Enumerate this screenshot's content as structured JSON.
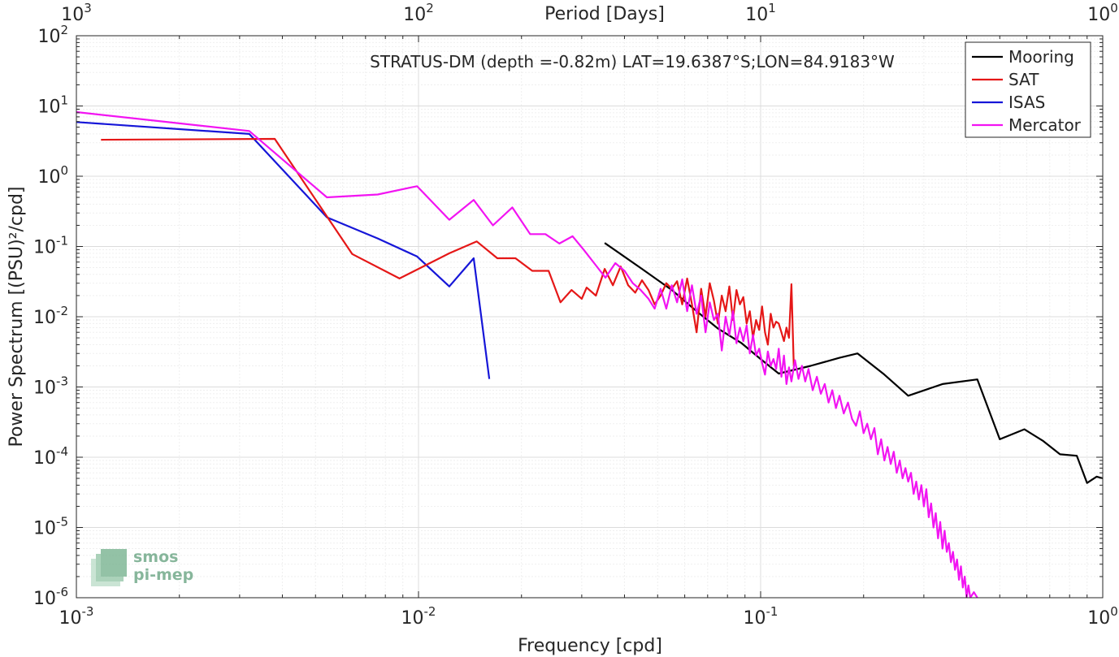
{
  "chart_data": {
    "type": "line",
    "title": "STRATUS-DM (depth =-0.82m) LAT=19.6387°S;LON=84.9183°W",
    "xlabel": "Frequency [cpd]",
    "ylabel": "Power Spectrum [(PSU)²/cpd]",
    "top_xlabel": "Period [Days]",
    "xscale": "log",
    "yscale": "log",
    "xlim": [
      0.001,
      1
    ],
    "ylim": [
      1e-06,
      100
    ],
    "grid": true,
    "legend_position": "top-right",
    "x_ticks": [
      {
        "value": 0.001,
        "base": "10",
        "exp": "-3"
      },
      {
        "value": 0.01,
        "base": "10",
        "exp": "-2"
      },
      {
        "value": 0.1,
        "base": "10",
        "exp": "-1"
      },
      {
        "value": 1,
        "base": "10",
        "exp": "0"
      }
    ],
    "top_ticks": [
      {
        "value": 0.001,
        "base": "10",
        "exp": "3"
      },
      {
        "value": 0.01,
        "base": "10",
        "exp": "2"
      },
      {
        "value": 0.1,
        "base": "10",
        "exp": "1"
      },
      {
        "value": 1,
        "base": "10",
        "exp": "0"
      }
    ],
    "y_ticks": [
      {
        "value": 1e-06,
        "base": "10",
        "exp": "-6"
      },
      {
        "value": 1e-05,
        "base": "10",
        "exp": "-5"
      },
      {
        "value": 0.0001,
        "base": "10",
        "exp": "-4"
      },
      {
        "value": 0.001,
        "base": "10",
        "exp": "-3"
      },
      {
        "value": 0.01,
        "base": "10",
        "exp": "-2"
      },
      {
        "value": 0.1,
        "base": "10",
        "exp": "-1"
      },
      {
        "value": 1,
        "base": "10",
        "exp": "0"
      },
      {
        "value": 10,
        "base": "10",
        "exp": "1"
      },
      {
        "value": 100,
        "base": "10",
        "exp": "2"
      }
    ],
    "series": [
      {
        "name": "Mooring",
        "color": "#000000",
        "points": [
          [
            0.035,
            0.112
          ],
          [
            0.045,
            0.048
          ],
          [
            0.055,
            0.024
          ],
          [
            0.065,
            0.012
          ],
          [
            0.075,
            0.0068
          ],
          [
            0.088,
            0.0042
          ],
          [
            0.1,
            0.0025
          ],
          [
            0.113,
            0.00155
          ],
          [
            0.14,
            0.002
          ],
          [
            0.17,
            0.0026
          ],
          [
            0.192,
            0.003
          ],
          [
            0.23,
            0.0015
          ],
          [
            0.27,
            0.00075
          ],
          [
            0.34,
            0.0011
          ],
          [
            0.43,
            0.00128
          ],
          [
            0.5,
            0.00018
          ],
          [
            0.59,
            0.00025
          ],
          [
            0.67,
            0.00017
          ],
          [
            0.75,
            0.00011
          ],
          [
            0.84,
            0.000105
          ],
          [
            0.9,
            4.3e-05
          ],
          [
            0.96,
            5.3e-05
          ],
          [
            1.0,
            5e-05
          ]
        ]
      },
      {
        "name": "SAT",
        "color": "#e51717",
        "points": [
          [
            0.00118,
            3.3
          ],
          [
            0.0038,
            3.4
          ],
          [
            0.0064,
            0.078
          ],
          [
            0.0088,
            0.035
          ],
          [
            0.0123,
            0.08
          ],
          [
            0.0148,
            0.118
          ],
          [
            0.017,
            0.068
          ],
          [
            0.0192,
            0.068
          ],
          [
            0.0215,
            0.045
          ],
          [
            0.024,
            0.045
          ],
          [
            0.026,
            0.016
          ],
          [
            0.028,
            0.024
          ],
          [
            0.03,
            0.018
          ],
          [
            0.031,
            0.026
          ],
          [
            0.033,
            0.02
          ],
          [
            0.035,
            0.048
          ],
          [
            0.037,
            0.028
          ],
          [
            0.039,
            0.052
          ],
          [
            0.041,
            0.028
          ],
          [
            0.043,
            0.022
          ],
          [
            0.045,
            0.033
          ],
          [
            0.047,
            0.024
          ],
          [
            0.049,
            0.015
          ],
          [
            0.051,
            0.02
          ],
          [
            0.053,
            0.03
          ],
          [
            0.055,
            0.025
          ],
          [
            0.057,
            0.032
          ],
          [
            0.059,
            0.015
          ],
          [
            0.061,
            0.035
          ],
          [
            0.063,
            0.015
          ],
          [
            0.065,
            0.006
          ],
          [
            0.067,
            0.025
          ],
          [
            0.069,
            0.01
          ],
          [
            0.071,
            0.03
          ],
          [
            0.073,
            0.017
          ],
          [
            0.075,
            0.008
          ],
          [
            0.077,
            0.02
          ],
          [
            0.079,
            0.012
          ],
          [
            0.081,
            0.027
          ],
          [
            0.083,
            0.009
          ],
          [
            0.085,
            0.024
          ],
          [
            0.087,
            0.015
          ],
          [
            0.089,
            0.019
          ],
          [
            0.091,
            0.008
          ],
          [
            0.093,
            0.012
          ],
          [
            0.095,
            0.005
          ],
          [
            0.097,
            0.009
          ],
          [
            0.099,
            0.0065
          ],
          [
            0.101,
            0.014
          ],
          [
            0.103,
            0.006
          ],
          [
            0.105,
            0.004
          ],
          [
            0.107,
            0.011
          ],
          [
            0.109,
            0.007
          ],
          [
            0.111,
            0.0085
          ],
          [
            0.113,
            0.008
          ],
          [
            0.115,
            0.006
          ],
          [
            0.117,
            0.0045
          ],
          [
            0.119,
            0.007
          ],
          [
            0.121,
            0.005
          ],
          [
            0.123,
            0.029
          ],
          [
            0.125,
            0.002
          ]
        ]
      },
      {
        "name": "ISAS",
        "color": "#1616d8",
        "points": [
          [
            0.001,
            5.9
          ],
          [
            0.0032,
            4.0
          ],
          [
            0.0054,
            0.26
          ],
          [
            0.0076,
            0.13
          ],
          [
            0.0099,
            0.072
          ],
          [
            0.0123,
            0.027
          ],
          [
            0.0145,
            0.068
          ],
          [
            0.0161,
            0.0013
          ]
        ]
      },
      {
        "name": "Mercator",
        "color": "#f214f2",
        "points": [
          [
            0.001,
            8.2
          ],
          [
            0.0032,
            4.4
          ],
          [
            0.0054,
            0.5
          ],
          [
            0.0076,
            0.55
          ],
          [
            0.0099,
            0.72
          ],
          [
            0.0123,
            0.24
          ],
          [
            0.0145,
            0.46
          ],
          [
            0.0165,
            0.2
          ],
          [
            0.0188,
            0.36
          ],
          [
            0.0212,
            0.15
          ],
          [
            0.0235,
            0.15
          ],
          [
            0.0258,
            0.11
          ],
          [
            0.0282,
            0.14
          ],
          [
            0.0305,
            0.088
          ],
          [
            0.0329,
            0.055
          ],
          [
            0.0352,
            0.036
          ],
          [
            0.0376,
            0.058
          ],
          [
            0.04,
            0.045
          ],
          [
            0.0423,
            0.03
          ],
          [
            0.0446,
            0.024
          ],
          [
            0.047,
            0.018
          ],
          [
            0.049,
            0.013
          ],
          [
            0.051,
            0.025
          ],
          [
            0.053,
            0.013
          ],
          [
            0.055,
            0.028
          ],
          [
            0.057,
            0.016
          ],
          [
            0.059,
            0.034
          ],
          [
            0.061,
            0.012
          ],
          [
            0.063,
            0.028
          ],
          [
            0.065,
            0.011
          ],
          [
            0.067,
            0.02
          ],
          [
            0.069,
            0.006
          ],
          [
            0.071,
            0.016
          ],
          [
            0.073,
            0.009
          ],
          [
            0.075,
            0.011
          ],
          [
            0.077,
            0.0033
          ],
          [
            0.079,
            0.01
          ],
          [
            0.081,
            0.0055
          ],
          [
            0.083,
            0.012
          ],
          [
            0.085,
            0.0042
          ],
          [
            0.087,
            0.007
          ],
          [
            0.089,
            0.0045
          ],
          [
            0.091,
            0.0075
          ],
          [
            0.093,
            0.003
          ],
          [
            0.095,
            0.0055
          ],
          [
            0.097,
            0.0028
          ],
          [
            0.099,
            0.0035
          ],
          [
            0.101,
            0.0022
          ],
          [
            0.103,
            0.0015
          ],
          [
            0.105,
            0.0032
          ],
          [
            0.107,
            0.002
          ],
          [
            0.109,
            0.0025
          ],
          [
            0.111,
            0.0018
          ],
          [
            0.113,
            0.0035
          ],
          [
            0.115,
            0.0014
          ],
          [
            0.117,
            0.0028
          ],
          [
            0.119,
            0.0011
          ],
          [
            0.121,
            0.0019
          ],
          [
            0.123,
            0.0012
          ],
          [
            0.126,
            0.0024
          ],
          [
            0.129,
            0.0013
          ],
          [
            0.132,
            0.002
          ],
          [
            0.135,
            0.0012
          ],
          [
            0.138,
            0.0018
          ],
          [
            0.142,
            0.0009
          ],
          [
            0.146,
            0.0014
          ],
          [
            0.15,
            0.0008
          ],
          [
            0.154,
            0.0011
          ],
          [
            0.158,
            0.0006
          ],
          [
            0.162,
            0.0009
          ],
          [
            0.166,
            0.0005
          ],
          [
            0.17,
            0.00075
          ],
          [
            0.175,
            0.00042
          ],
          [
            0.18,
            0.0006
          ],
          [
            0.185,
            0.00035
          ],
          [
            0.19,
            0.00028
          ],
          [
            0.195,
            0.00045
          ],
          [
            0.2,
            0.00022
          ],
          [
            0.205,
            0.0003
          ],
          [
            0.21,
            0.00018
          ],
          [
            0.215,
            0.00026
          ],
          [
            0.22,
            0.00011
          ],
          [
            0.225,
            0.00018
          ],
          [
            0.23,
            9e-05
          ],
          [
            0.235,
            0.00014
          ],
          [
            0.24,
            8e-05
          ],
          [
            0.245,
            0.00012
          ],
          [
            0.25,
            6e-05
          ],
          [
            0.255,
            9e-05
          ],
          [
            0.26,
            5e-05
          ],
          [
            0.265,
            7e-05
          ],
          [
            0.27,
            4.5e-05
          ],
          [
            0.275,
            6e-05
          ],
          [
            0.28,
            3e-05
          ],
          [
            0.285,
            4.5e-05
          ],
          [
            0.29,
            2.5e-05
          ],
          [
            0.295,
            4e-05
          ],
          [
            0.3,
            2e-05
          ],
          [
            0.305,
            3.5e-05
          ],
          [
            0.31,
            1.4e-05
          ],
          [
            0.315,
            2.2e-05
          ],
          [
            0.32,
            1e-05
          ],
          [
            0.325,
            1.6e-05
          ],
          [
            0.33,
            7e-06
          ],
          [
            0.335,
            1.2e-05
          ],
          [
            0.34,
            5e-06
          ],
          [
            0.345,
            9e-06
          ],
          [
            0.35,
            4.5e-06
          ],
          [
            0.355,
            6e-06
          ],
          [
            0.36,
            3.2e-06
          ],
          [
            0.365,
            4.5e-06
          ],
          [
            0.37,
            2.5e-06
          ],
          [
            0.375,
            3.5e-06
          ],
          [
            0.38,
            1.8e-06
          ],
          [
            0.385,
            2.8e-06
          ],
          [
            0.39,
            1.4e-06
          ],
          [
            0.395,
            2e-06
          ],
          [
            0.4,
            1e-06
          ],
          [
            0.405,
            1.5e-06
          ],
          [
            0.41,
            1e-06
          ],
          [
            0.42,
            1.2e-06
          ],
          [
            0.43,
            1e-06
          ]
        ]
      }
    ]
  },
  "watermark": {
    "line1": "smos",
    "line2": "pi-mep"
  }
}
